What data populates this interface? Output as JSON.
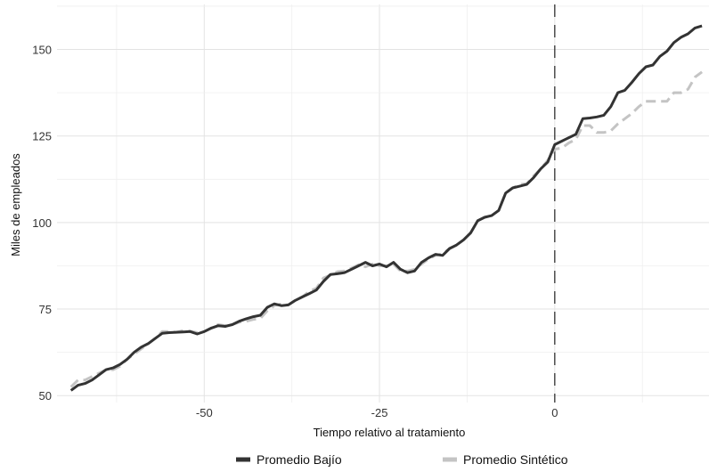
{
  "chart_data": {
    "type": "line",
    "title": "",
    "xlabel": "Tiempo relativo al tratamiento",
    "ylabel": "Miles de empleados",
    "xlim": [
      -71,
      22
    ],
    "ylim": [
      48,
      163
    ],
    "x_ticks": [
      -50,
      -25,
      0
    ],
    "x_tick_labels": [
      "-50",
      "-25",
      "0"
    ],
    "y_ticks": [
      50,
      75,
      100,
      125,
      150
    ],
    "y_tick_labels": [
      "50",
      "75",
      "100",
      "125",
      "150"
    ],
    "grid": true,
    "legend_position": "bottom",
    "treatment_line_x": 0,
    "colors": {
      "bajio": "#333333",
      "sintetico": "#c4c4c4"
    },
    "series": [
      {
        "name": "Promedio Bajío",
        "style": "solid",
        "points": [
          [
            -69,
            51.5
          ],
          [
            -68,
            53
          ],
          [
            -67,
            53.5
          ],
          [
            -66,
            54.5
          ],
          [
            -65,
            56
          ],
          [
            -64,
            57.5
          ],
          [
            -63,
            58
          ],
          [
            -62,
            59
          ],
          [
            -61,
            60.5
          ],
          [
            -60,
            62.5
          ],
          [
            -59,
            64
          ],
          [
            -58,
            65
          ],
          [
            -57,
            66.5
          ],
          [
            -56,
            68
          ],
          [
            -55,
            68.2
          ],
          [
            -54,
            68.3
          ],
          [
            -53,
            68.4
          ],
          [
            -52,
            68.5
          ],
          [
            -51,
            67.8
          ],
          [
            -50,
            68.5
          ],
          [
            -49,
            69.5
          ],
          [
            -48,
            70.2
          ],
          [
            -47,
            70
          ],
          [
            -46,
            70.5
          ],
          [
            -45,
            71.5
          ],
          [
            -44,
            72.2
          ],
          [
            -43,
            72.8
          ],
          [
            -42,
            73.2
          ],
          [
            -41,
            75.5
          ],
          [
            -40,
            76.5
          ],
          [
            -39,
            76
          ],
          [
            -38,
            76.2
          ],
          [
            -37,
            77.5
          ],
          [
            -36,
            78.5
          ],
          [
            -35,
            79.5
          ],
          [
            -34,
            80.5
          ],
          [
            -33,
            83
          ],
          [
            -32,
            85
          ],
          [
            -31,
            85.2
          ],
          [
            -30,
            85.5
          ],
          [
            -29,
            86.5
          ],
          [
            -28,
            87.5
          ],
          [
            -27,
            88.5
          ],
          [
            -26,
            87.5
          ],
          [
            -25,
            88
          ],
          [
            -24,
            87.2
          ],
          [
            -23,
            88.5
          ],
          [
            -22,
            86.5
          ],
          [
            -21,
            85.5
          ],
          [
            -20,
            86
          ],
          [
            -19,
            88.5
          ],
          [
            -18,
            89.8
          ],
          [
            -17,
            90.8
          ],
          [
            -16,
            90.5
          ],
          [
            -15,
            92.5
          ],
          [
            -14,
            93.5
          ],
          [
            -13,
            95
          ],
          [
            -12,
            97
          ],
          [
            -11,
            100.5
          ],
          [
            -10,
            101.5
          ],
          [
            -9,
            102
          ],
          [
            -8,
            103.5
          ],
          [
            -7,
            108.5
          ],
          [
            -6,
            110
          ],
          [
            -5,
            110.5
          ],
          [
            -4,
            111
          ],
          [
            -3,
            113
          ],
          [
            -2,
            115.5
          ],
          [
            -1,
            117.5
          ],
          [
            0,
            122.5
          ],
          [
            1,
            123.5
          ],
          [
            2,
            124.5
          ],
          [
            3,
            125.5
          ],
          [
            4,
            130
          ],
          [
            5,
            130.2
          ],
          [
            6,
            130.5
          ],
          [
            7,
            131
          ],
          [
            8,
            133.5
          ],
          [
            9,
            137.5
          ],
          [
            10,
            138.2
          ],
          [
            11,
            140.5
          ],
          [
            12,
            143
          ],
          [
            13,
            145
          ],
          [
            14,
            145.5
          ],
          [
            15,
            148
          ],
          [
            16,
            149.5
          ],
          [
            17,
            152
          ],
          [
            18,
            153.5
          ],
          [
            19,
            154.5
          ],
          [
            20,
            156.2
          ],
          [
            21,
            156.8
          ]
        ]
      },
      {
        "name": "Promedio Sintético",
        "style": "dashed",
        "points": [
          [
            -69,
            52.5
          ],
          [
            -68,
            54.5
          ],
          [
            -67,
            54.5
          ],
          [
            -66,
            55.5
          ],
          [
            -65,
            56.5
          ],
          [
            -64,
            57.5
          ],
          [
            -63,
            57.5
          ],
          [
            -62,
            58.5
          ],
          [
            -61,
            60.5
          ],
          [
            -60,
            62
          ],
          [
            -59,
            63.5
          ],
          [
            -58,
            65
          ],
          [
            -57,
            66.5
          ],
          [
            -56,
            68.5
          ],
          [
            -55,
            68.5
          ],
          [
            -54,
            68.3
          ],
          [
            -53,
            68.8
          ],
          [
            -52,
            68.6
          ],
          [
            -51,
            68.2
          ],
          [
            -50,
            68.5
          ],
          [
            -49,
            69.5
          ],
          [
            -48,
            70.5
          ],
          [
            -47,
            70.2
          ],
          [
            -46,
            70.5
          ],
          [
            -45,
            71.2
          ],
          [
            -44,
            71.5
          ],
          [
            -43,
            72
          ],
          [
            -42,
            72.3
          ],
          [
            -41,
            74.5
          ],
          [
            -40,
            76
          ],
          [
            -39,
            76.5
          ],
          [
            -38,
            76.2
          ],
          [
            -37,
            77.5
          ],
          [
            -36,
            78.5
          ],
          [
            -35,
            80.2
          ],
          [
            -34,
            81
          ],
          [
            -33,
            84
          ],
          [
            -32,
            84.8
          ],
          [
            -31,
            85.8
          ],
          [
            -30,
            86
          ],
          [
            -29,
            86.8
          ],
          [
            -28,
            87.8
          ],
          [
            -27,
            87.2
          ],
          [
            -26,
            88
          ],
          [
            -25,
            87.5
          ],
          [
            -24,
            87.5
          ],
          [
            -23,
            88
          ],
          [
            -22,
            86
          ],
          [
            -21,
            86
          ],
          [
            -20,
            86.5
          ],
          [
            -19,
            88
          ],
          [
            -18,
            89.5
          ],
          [
            -17,
            90.5
          ],
          [
            -16,
            91
          ],
          [
            -15,
            92.5
          ],
          [
            -14,
            93.5
          ],
          [
            -13,
            95
          ],
          [
            -12,
            97
          ],
          [
            -11,
            100.5
          ],
          [
            -10,
            101.5
          ],
          [
            -9,
            102
          ],
          [
            -8,
            103.5
          ],
          [
            -7,
            108.5
          ],
          [
            -6,
            110
          ],
          [
            -5,
            111
          ],
          [
            -4,
            111.2
          ],
          [
            -3,
            113.5
          ],
          [
            -2,
            115.5
          ],
          [
            -1,
            118
          ],
          [
            0,
            121.2
          ],
          [
            1,
            121.5
          ],
          [
            2,
            123
          ],
          [
            3,
            124
          ],
          [
            4,
            128
          ],
          [
            5,
            128
          ],
          [
            6,
            126
          ],
          [
            7,
            126
          ],
          [
            8,
            126.5
          ],
          [
            9,
            128.5
          ],
          [
            10,
            130
          ],
          [
            11,
            131.5
          ],
          [
            12,
            133.5
          ],
          [
            13,
            135
          ],
          [
            14,
            135
          ],
          [
            15,
            135
          ],
          [
            16,
            135
          ],
          [
            17,
            137.5
          ],
          [
            18,
            137.5
          ],
          [
            19,
            138.5
          ],
          [
            20,
            142
          ],
          [
            21,
            143.5
          ]
        ]
      }
    ]
  }
}
